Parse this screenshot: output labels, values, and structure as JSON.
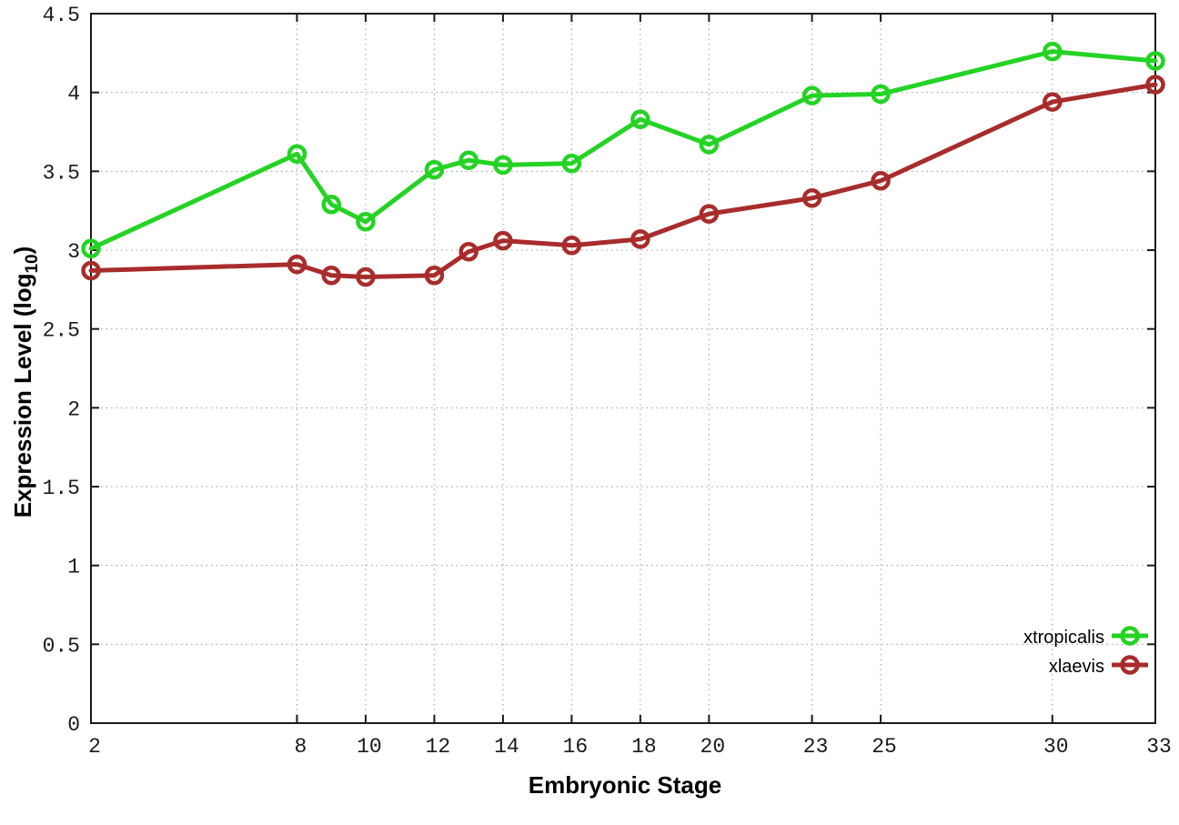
{
  "chart_data": {
    "type": "line",
    "style": "linespoints-open-circle",
    "xlabel": "Embryonic Stage",
    "ylabel": "Expression Level (log10)",
    "ylabel_parts": {
      "main": "Expression Level (log",
      "sub": "10",
      "close": ")"
    },
    "xlim": [
      2,
      33
    ],
    "ylim": [
      0,
      4.5
    ],
    "xticks": [
      2,
      8,
      10,
      12,
      14,
      16,
      18,
      20,
      23,
      25,
      30,
      33
    ],
    "yticks": [
      0,
      0.5,
      1,
      1.5,
      2,
      2.5,
      3,
      3.5,
      4,
      4.5
    ],
    "grid": true,
    "legend_position": "bottom-right",
    "background_color": "#ffffff",
    "axis_color": "#1a1a1a",
    "grid_color": "#9a9a9a",
    "x": [
      2,
      8,
      9,
      10,
      12,
      13,
      14,
      16,
      18,
      20,
      23,
      25,
      30,
      33
    ],
    "series": [
      {
        "name": "xtropicalis",
        "color": "#24d324",
        "values": [
          3.01,
          3.61,
          3.29,
          3.18,
          3.51,
          3.57,
          3.54,
          3.55,
          3.83,
          3.67,
          3.98,
          3.99,
          4.26,
          4.2
        ]
      },
      {
        "name": "xlaevis",
        "color": "#a82c2c",
        "values": [
          2.87,
          2.91,
          2.84,
          2.83,
          2.84,
          2.99,
          3.06,
          3.03,
          3.07,
          3.23,
          3.33,
          3.44,
          3.94,
          4.05
        ]
      }
    ]
  }
}
